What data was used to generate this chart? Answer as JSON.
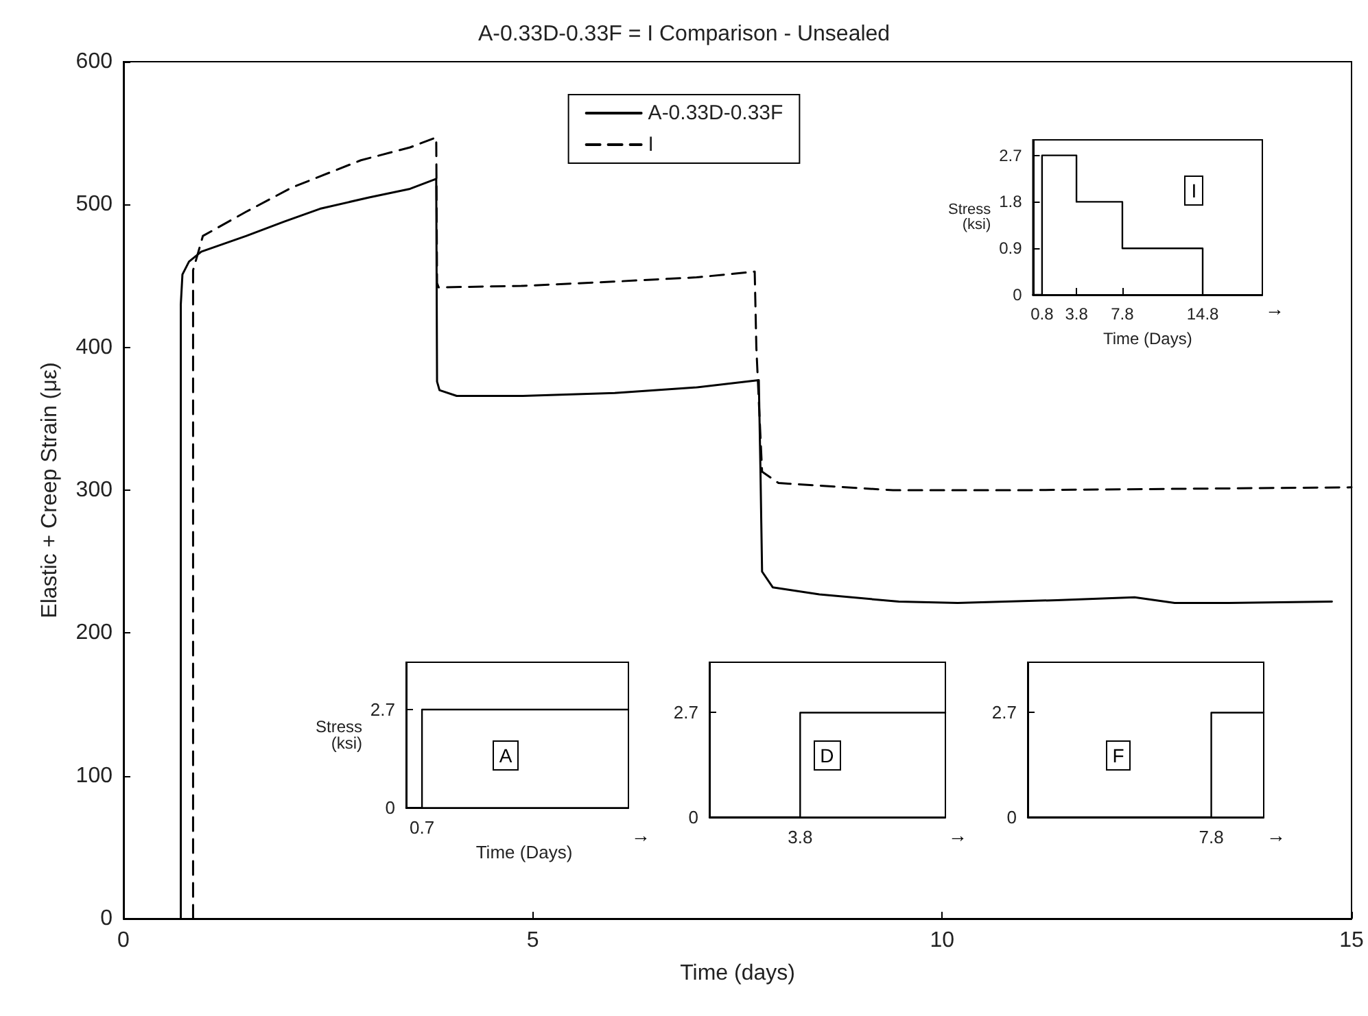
{
  "chart_data": [
    {
      "type": "line",
      "title": "A-0.33D-0.33F = I Comparison - Unsealed",
      "xlabel": "Time (days)",
      "ylabel": "Elastic + Creep Strain (με)",
      "xlim": [
        0,
        15
      ],
      "xticks": [
        0,
        5,
        10,
        15
      ],
      "ylim": [
        0,
        600
      ],
      "yticks": [
        0,
        100,
        200,
        300,
        400,
        500,
        600
      ],
      "legend": "top",
      "series": [
        {
          "name": "A-0.33D-0.33F",
          "color": "#000000",
          "line_style": "solid",
          "x": [
            0.7,
            0.7,
            0.72,
            0.8,
            0.95,
            1.5,
            1.96,
            2.4,
            3.0,
            3.5,
            3.82,
            3.83,
            3.86,
            4.07,
            4.86,
            6.0,
            7.0,
            7.76,
            7.78,
            7.8,
            7.93,
            8.5,
            9.47,
            10.19,
            11.4,
            12.35,
            12.84,
            13.5,
            14.76
          ],
          "values": [
            0,
            430,
            451,
            460,
            467,
            478,
            488,
            497,
            505,
            511,
            518,
            376,
            370,
            366,
            366,
            368,
            372,
            377,
            315,
            243,
            232,
            227,
            222,
            221,
            223,
            225,
            221,
            221,
            222
          ]
        },
        {
          "name": "I",
          "color": "#000000",
          "line_style": "dashed",
          "x": [
            0.85,
            0.85,
            0.97,
            1.5,
            2.06,
            2.9,
            3.5,
            3.82,
            3.83,
            3.85,
            4.86,
            5.98,
            7.0,
            7.71,
            7.73,
            7.8,
            8.0,
            9.4,
            11,
            13,
            15
          ],
          "values": [
            0,
            454,
            478,
            495,
            512,
            531,
            540,
            547,
            445,
            442,
            443,
            446,
            449,
            453,
            400,
            313,
            305,
            300,
            300,
            301,
            302
          ]
        }
      ]
    },
    {
      "type": "step",
      "xlabel": "Time (Days)",
      "ylabel": "Stress (ksi)",
      "x": [
        0,
        0.8,
        3.8,
        7.8,
        14.8
      ],
      "values": [
        0,
        2.7,
        1.8,
        0.9,
        0
      ],
      "color": "#000000",
      "xlim": [
        0,
        20
      ],
      "xticks": [
        0.8,
        3.8,
        7.8,
        14.8
      ],
      "ylim": [
        0,
        3
      ],
      "yticks": [
        0,
        0.9,
        1.8,
        2.7
      ],
      "annotations": [
        "I",
        "→"
      ]
    },
    {
      "type": "step",
      "xlabel": "Time (Days)",
      "ylabel": "Stress (ksi)",
      "categories": [
        null,
        "0.7",
        null,
        null,
        null,
        null,
        null,
        null,
        null,
        null,
        null,
        null,
        null,
        null,
        null
      ],
      "values": [
        0,
        2.7,
        2.7,
        2.7,
        2.7,
        2.7,
        2.7,
        2.7,
        2.7,
        2.7,
        2.7,
        2.7,
        2.7,
        2.7,
        2.7
      ],
      "color": "#000000",
      "ylim": [
        0,
        4
      ],
      "yticks": [
        0,
        2.7
      ],
      "annotations": [
        "A",
        "→"
      ]
    },
    {
      "type": "step",
      "categories": [
        null,
        null,
        null,
        null,
        null,
        "3.8",
        null,
        null,
        null,
        null,
        null,
        null,
        null,
        null
      ],
      "values": [
        0,
        0,
        0,
        0,
        0,
        2.7,
        2.7,
        2.7,
        2.7,
        2.7,
        2.7,
        2.7,
        2.7,
        2.7
      ],
      "color": "#000000",
      "ylim": [
        0,
        4
      ],
      "yticks": [
        0,
        2.7
      ],
      "annotations": [
        "D",
        "→"
      ]
    },
    {
      "type": "step",
      "categories": [
        null,
        null,
        null,
        null,
        null,
        null,
        null,
        "7.8",
        null,
        null
      ],
      "values": [
        0,
        0,
        0,
        0,
        0,
        0,
        0,
        2.7,
        2.7,
        2.7
      ],
      "color": "#000000",
      "ylim": [
        0,
        4
      ],
      "yticks": [
        0,
        2.7
      ],
      "annotations": [
        "F",
        "→"
      ]
    }
  ]
}
